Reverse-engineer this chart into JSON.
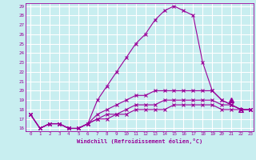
{
  "xlabel": "Windchill (Refroidissement éolien,°C)",
  "bg_color": "#c8eef0",
  "grid_color": "#ffffff",
  "line_color": "#990099",
  "xmin": 0,
  "xmax": 23,
  "ymin": 16,
  "ymax": 29,
  "series": [
    [
      17.5,
      16.0,
      16.5,
      16.5,
      16.0,
      16.0,
      16.5,
      19.0,
      20.5,
      22.0,
      23.5,
      25.0,
      26.0,
      27.5,
      28.5,
      29.0,
      28.5,
      28.0,
      23.0,
      20.0,
      19.0,
      18.5,
      18.0,
      18.0
    ],
    [
      17.5,
      16.0,
      16.5,
      16.5,
      16.0,
      16.0,
      16.5,
      17.5,
      18.0,
      18.5,
      19.0,
      19.5,
      19.5,
      20.0,
      20.0,
      20.0,
      20.0,
      20.0,
      20.0,
      20.0,
      19.0,
      18.5,
      18.0,
      18.0
    ],
    [
      17.5,
      16.0,
      16.5,
      16.5,
      16.0,
      16.0,
      16.5,
      17.0,
      17.5,
      17.5,
      18.0,
      18.5,
      18.5,
      18.5,
      19.0,
      19.0,
      19.0,
      19.0,
      19.0,
      19.0,
      18.5,
      18.5,
      18.0,
      18.0
    ],
    [
      17.5,
      16.0,
      16.5,
      16.5,
      16.0,
      16.0,
      16.5,
      17.0,
      17.0,
      17.5,
      17.5,
      18.0,
      18.0,
      18.0,
      18.0,
      18.5,
      18.5,
      18.5,
      18.5,
      18.5,
      18.0,
      18.0,
      18.0,
      18.0
    ]
  ],
  "triangle_filled_x": 21,
  "triangle_filled_y": 19.0,
  "triangle_open_x": 22,
  "triangle_open_y": 18.0
}
